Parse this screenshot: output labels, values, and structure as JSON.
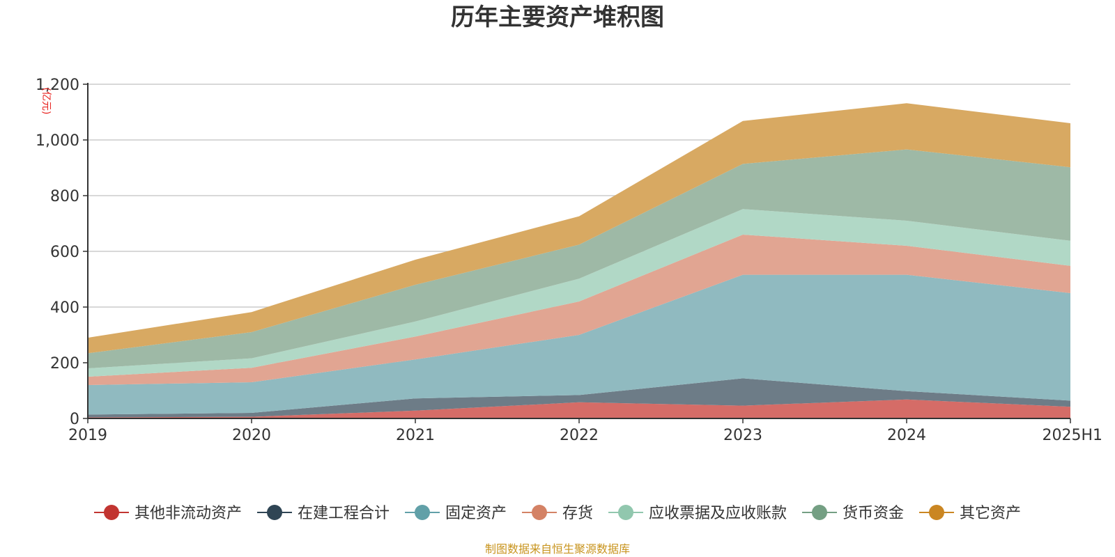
{
  "chart_data": {
    "type": "area",
    "stacked": true,
    "title": "历年主要资产堆积图",
    "unit": "(亿元)",
    "categories": [
      "2019",
      "2020",
      "2021",
      "2022",
      "2023",
      "2024",
      "2025H1"
    ],
    "ylim": [
      0,
      1200
    ],
    "yticks": [
      0,
      200,
      400,
      600,
      800,
      1000,
      1200
    ],
    "ytick_labels": [
      "0",
      "200",
      "400",
      "600",
      "800",
      "1,000",
      "1,200"
    ],
    "grid": true,
    "legend_position": "bottom",
    "series": [
      {
        "name": "其他非流动资产",
        "color": "#c23531",
        "fill": "#d56c67",
        "values": [
          4,
          6,
          28,
          58,
          46,
          68,
          42
        ]
      },
      {
        "name": "在建工程合计",
        "color": "#2f4554",
        "fill": "#6d7c87",
        "values": [
          10,
          14,
          44,
          26,
          98,
          30,
          22
        ]
      },
      {
        "name": "固定资产",
        "color": "#61a0a8",
        "fill": "#90bac0",
        "values": [
          106,
          110,
          140,
          216,
          372,
          418,
          386
        ]
      },
      {
        "name": "存货",
        "color": "#d48265",
        "fill": "#e1a592",
        "values": [
          30,
          52,
          82,
          120,
          144,
          104,
          98
        ]
      },
      {
        "name": "应收票据及应收账款",
        "color": "#91c7ae",
        "fill": "#b1d8c6",
        "values": [
          30,
          34,
          54,
          82,
          92,
          90,
          90
        ]
      },
      {
        "name": "货币资金",
        "color": "#749f83",
        "fill": "#9eb9a6",
        "values": [
          54,
          94,
          132,
          122,
          162,
          256,
          264
        ]
      },
      {
        "name": "其它资产",
        "color": "#ca8622",
        "fill": "#d8a962",
        "values": [
          56,
          72,
          90,
          102,
          154,
          166,
          158
        ]
      }
    ],
    "source": "制图数据来自恒生聚源数据库"
  }
}
